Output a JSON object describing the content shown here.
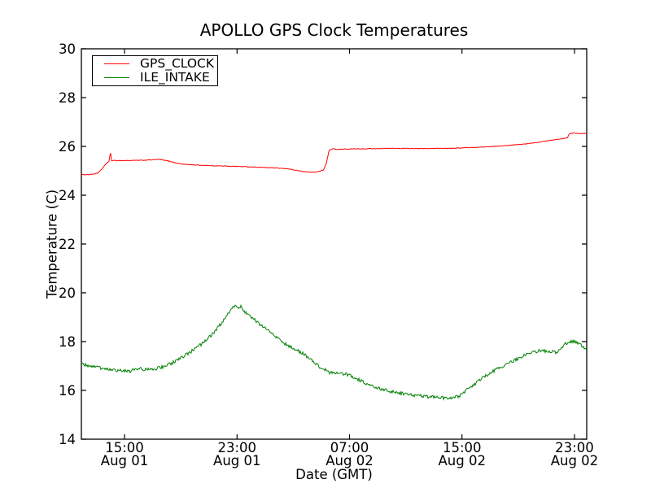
{
  "figure": {
    "background": "#ffffff",
    "frame_color": "#000000"
  },
  "chart_data": {
    "type": "line",
    "title": "APOLLO GPS Clock Temperatures",
    "xlabel": "Date (GMT)",
    "ylabel": "Temperature (C)",
    "ylim": [
      14,
      30
    ],
    "yticks": [
      14,
      16,
      18,
      20,
      22,
      24,
      26,
      28,
      30
    ],
    "x_domain_hours": [
      11.93,
      47.87
    ],
    "xticks": [
      {
        "hour": 15,
        "time": "15:00",
        "date": "Aug 01"
      },
      {
        "hour": 23,
        "time": "23:00",
        "date": "Aug 01"
      },
      {
        "hour": 31,
        "time": "07:00",
        "date": "Aug 02"
      },
      {
        "hour": 39,
        "time": "15:00",
        "date": "Aug 02"
      },
      {
        "hour": 47,
        "time": "23:00",
        "date": "Aug 02"
      }
    ],
    "grid": false,
    "legend_position": "upper-left",
    "series": [
      {
        "name": "GPS_CLOCK",
        "color": "#ff0000",
        "noise": 0.013,
        "points": [
          [
            11.93,
            24.84
          ],
          [
            12.6,
            24.85
          ],
          [
            13.1,
            24.9
          ],
          [
            13.45,
            25.12
          ],
          [
            13.75,
            25.33
          ],
          [
            13.93,
            25.4
          ],
          [
            13.99,
            25.88
          ],
          [
            14.06,
            25.42
          ],
          [
            14.8,
            25.42
          ],
          [
            16.3,
            25.43
          ],
          [
            17.45,
            25.47
          ],
          [
            17.75,
            25.44
          ],
          [
            18.3,
            25.38
          ],
          [
            18.8,
            25.3
          ],
          [
            19.35,
            25.26
          ],
          [
            20.35,
            25.23
          ],
          [
            21.8,
            25.2
          ],
          [
            23.5,
            25.17
          ],
          [
            25.25,
            25.13
          ],
          [
            26.7,
            25.08
          ],
          [
            27.1,
            25.03
          ],
          [
            27.7,
            24.97
          ],
          [
            28.3,
            24.94
          ],
          [
            28.75,
            24.96
          ],
          [
            29.15,
            25.03
          ],
          [
            29.35,
            25.3
          ],
          [
            29.55,
            25.85
          ],
          [
            29.8,
            25.9
          ],
          [
            30.1,
            25.88
          ],
          [
            31.6,
            25.9
          ],
          [
            34.0,
            25.92
          ],
          [
            36.3,
            25.91
          ],
          [
            38.6,
            25.93
          ],
          [
            40.35,
            25.97
          ],
          [
            42.1,
            26.03
          ],
          [
            43.5,
            26.1
          ],
          [
            44.7,
            26.2
          ],
          [
            45.55,
            26.27
          ],
          [
            46.3,
            26.33
          ],
          [
            46.5,
            26.35
          ],
          [
            46.62,
            26.52
          ],
          [
            47.0,
            26.55
          ],
          [
            47.4,
            26.53
          ],
          [
            47.87,
            26.53
          ]
        ]
      },
      {
        "name": "ILE_INTAKE",
        "color": "#007f00",
        "noise": 0.065,
        "points": [
          [
            11.93,
            17.08
          ],
          [
            12.6,
            16.98
          ],
          [
            13.55,
            16.9
          ],
          [
            14.55,
            16.82
          ],
          [
            15.4,
            16.79
          ],
          [
            16.0,
            16.92
          ],
          [
            16.45,
            16.85
          ],
          [
            17.15,
            16.88
          ],
          [
            17.75,
            16.97
          ],
          [
            18.3,
            17.1
          ],
          [
            19.0,
            17.32
          ],
          [
            19.75,
            17.6
          ],
          [
            20.5,
            17.9
          ],
          [
            21.1,
            18.22
          ],
          [
            21.65,
            18.58
          ],
          [
            22.15,
            18.95
          ],
          [
            22.5,
            19.25
          ],
          [
            22.8,
            19.45
          ],
          [
            23.05,
            19.38
          ],
          [
            23.25,
            19.45
          ],
          [
            23.55,
            19.22
          ],
          [
            24.0,
            19.02
          ],
          [
            24.55,
            18.75
          ],
          [
            25.25,
            18.45
          ],
          [
            25.95,
            18.1
          ],
          [
            26.55,
            17.85
          ],
          [
            27.1,
            17.68
          ],
          [
            27.6,
            17.55
          ],
          [
            28.3,
            17.25
          ],
          [
            28.85,
            16.98
          ],
          [
            29.6,
            16.73
          ],
          [
            30.2,
            16.7
          ],
          [
            30.8,
            16.66
          ],
          [
            31.5,
            16.48
          ],
          [
            32.35,
            16.25
          ],
          [
            33.25,
            16.05
          ],
          [
            34.25,
            15.92
          ],
          [
            35.4,
            15.82
          ],
          [
            36.3,
            15.75
          ],
          [
            37.15,
            15.72
          ],
          [
            37.9,
            15.68
          ],
          [
            38.5,
            15.72
          ],
          [
            38.9,
            15.8
          ],
          [
            39.3,
            16.0
          ],
          [
            39.75,
            16.2
          ],
          [
            40.45,
            16.5
          ],
          [
            41.2,
            16.78
          ],
          [
            41.95,
            17.02
          ],
          [
            42.75,
            17.25
          ],
          [
            43.55,
            17.45
          ],
          [
            44.1,
            17.58
          ],
          [
            44.7,
            17.63
          ],
          [
            45.25,
            17.6
          ],
          [
            45.65,
            17.55
          ],
          [
            46.0,
            17.7
          ],
          [
            46.45,
            17.95
          ],
          [
            46.85,
            18.02
          ],
          [
            47.2,
            17.97
          ],
          [
            47.5,
            17.85
          ],
          [
            47.75,
            17.68
          ],
          [
            47.87,
            17.65
          ]
        ]
      }
    ]
  }
}
